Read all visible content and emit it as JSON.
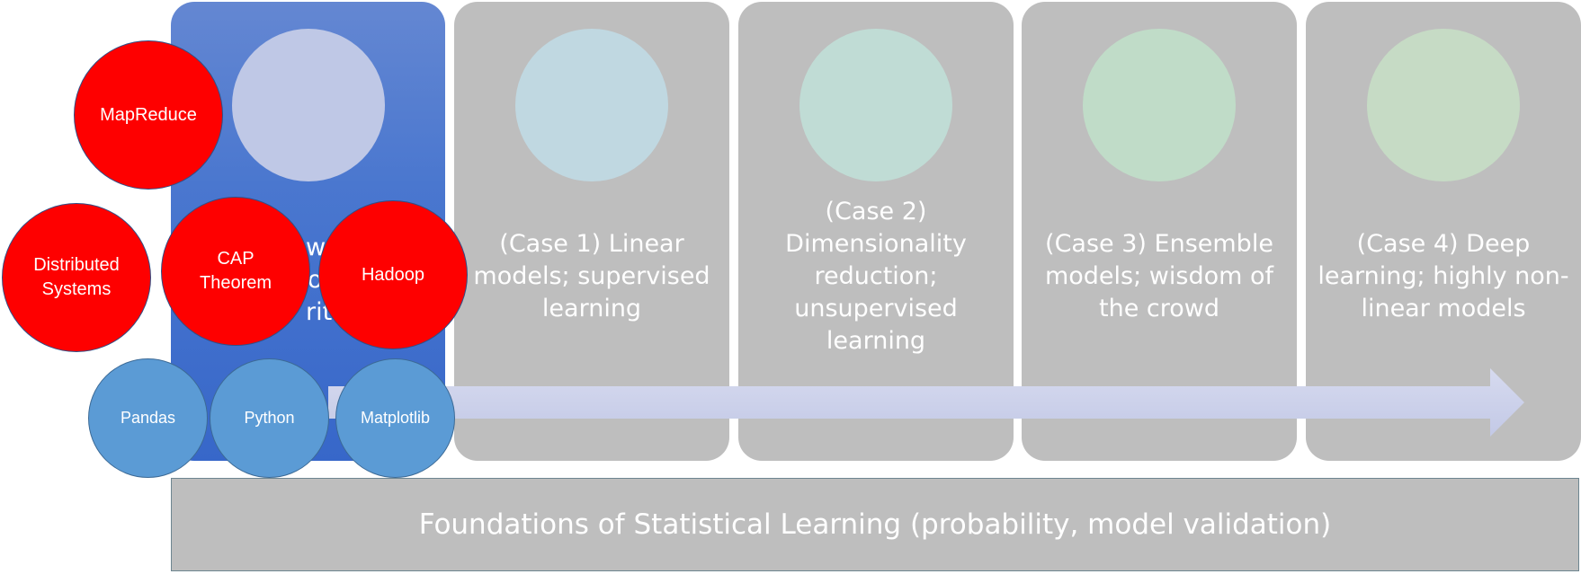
{
  "colors": {
    "panel_gray": "#bebebe",
    "panel_blue": "#4a77cf",
    "red_bubble": "#fe0000",
    "blue_bubble": "#5b9bd5",
    "arrow": "#cfd4ea"
  },
  "stages": [
    {
      "label": "",
      "disc_color": "#bfc8e6"
    },
    {
      "label": "(Case 1) Linear models; supervised learning",
      "disc_color": "#c0d8e1"
    },
    {
      "label": "(Case 2) Dimensionality reduction; unsupervised learning",
      "disc_color": "#c0dcd5"
    },
    {
      "label": "(Case 3) Ensemble models; wisdom of the crowd",
      "disc_color": "#c0dcc8"
    },
    {
      "label": "(Case 4) Deep learning; highly non-linear models",
      "disc_color": "#c6dbc5"
    }
  ],
  "hidden_label_fragments": [
    "w",
    "o",
    "ritl"
  ],
  "foundation": "Foundations of Statistical Learning (probability, model validation)",
  "big_data_bubbles": [
    "MapReduce",
    "Distributed Systems",
    "CAP Theorem",
    "Hadoop"
  ],
  "tool_bubbles": [
    "Pandas",
    "Python",
    "Matplotlib"
  ]
}
